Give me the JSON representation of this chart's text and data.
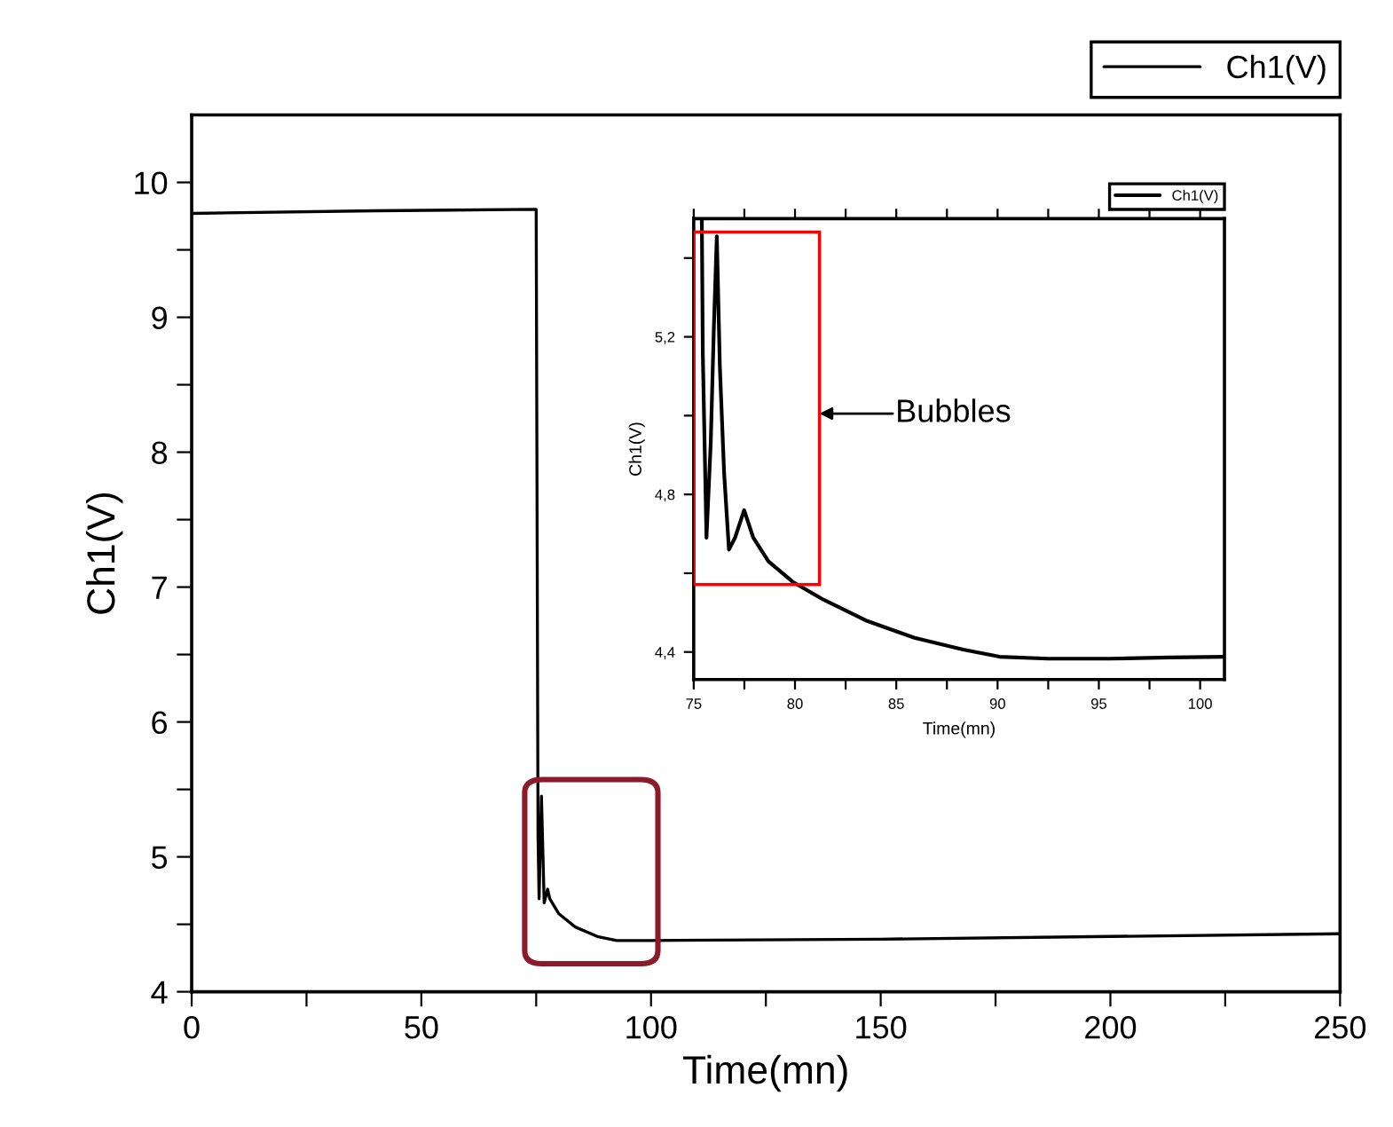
{
  "chart_data": [
    {
      "type": "line",
      "xlabel": "Time(mn)",
      "ylabel": "Ch1(V)",
      "xlim": [
        0,
        250
      ],
      "ylim": [
        4,
        10.5
      ],
      "xticks": [
        0,
        {
          "value": 25,
          "label": null
        },
        50,
        {
          "value": 75,
          "label": null
        },
        100,
        {
          "value": 125,
          "label": null
        },
        150,
        {
          "value": 175,
          "label": null
        },
        200,
        {
          "value": 225,
          "label": null
        },
        250
      ],
      "yticks": [
        4,
        {
          "value": 4.5,
          "label": null
        },
        5,
        {
          "value": 5.5,
          "label": null
        },
        6,
        {
          "value": 6.5,
          "label": null
        },
        7,
        {
          "value": 7.5,
          "label": null
        },
        8,
        {
          "value": 8.5,
          "label": null
        },
        9,
        {
          "value": 9.5,
          "label": null
        },
        10
      ],
      "legend": "top right",
      "series": [
        {
          "name": "Ch1(V)",
          "color": "#000000",
          "x": [
            0,
            40,
            75.0,
            75.4,
            75.63,
            76.14,
            76.74,
            77.49,
            77.94,
            79.89,
            83.5,
            88.3,
            92.5,
            100,
            150,
            200,
            250
          ],
          "values": [
            9.77,
            9.79,
            9.8,
            5.15,
            4.69,
            5.45,
            4.66,
            4.76,
            4.69,
            4.58,
            4.48,
            4.41,
            4.38,
            4.38,
            4.39,
            4.41,
            4.43
          ]
        }
      ]
    },
    {
      "type": "line",
      "xlabel": "Time(mn)",
      "ylabel": "Ch1(V)",
      "xlim": [
        75,
        101.2
      ],
      "ylim": [
        4.33,
        5.5
      ],
      "xticks": [
        75,
        {
          "value": 77.5,
          "label": null
        },
        80,
        {
          "value": 82.5,
          "label": null
        },
        85,
        {
          "value": 87.5,
          "label": null
        },
        90,
        {
          "value": 92.5,
          "label": null
        },
        95,
        {
          "value": 97.5,
          "label": null
        },
        100
      ],
      "yticks": [
        {
          "value": 4.4,
          "label": "4,4"
        },
        {
          "value": 4.6,
          "label": null
        },
        {
          "value": 4.8,
          "label": "4,8"
        },
        {
          "value": 5.0,
          "label": null
        },
        {
          "value": 5.2,
          "label": "5,2"
        },
        {
          "value": 5.4,
          "label": null
        }
      ],
      "legend": "top right",
      "annotations": [
        "Bubbles"
      ],
      "series": [
        {
          "name": "Ch1(V)",
          "color": "#000000",
          "x": [
            75.4,
            75.45,
            75.63,
            75.84,
            75.99,
            76.14,
            76.29,
            76.5,
            76.74,
            77.04,
            77.49,
            77.94,
            78.69,
            79.89,
            81.4,
            83.5,
            85.9,
            88.3,
            90.1,
            92.5,
            95.5,
            98.5,
            101.2
          ],
          "values": [
            5.5,
            5.155,
            4.69,
            4.93,
            5.215,
            5.455,
            5.125,
            4.855,
            4.66,
            4.69,
            4.76,
            4.69,
            4.63,
            4.578,
            4.533,
            4.48,
            4.436,
            4.406,
            4.388,
            4.383,
            4.383,
            4.386,
            4.388
          ]
        }
      ]
    }
  ]
}
